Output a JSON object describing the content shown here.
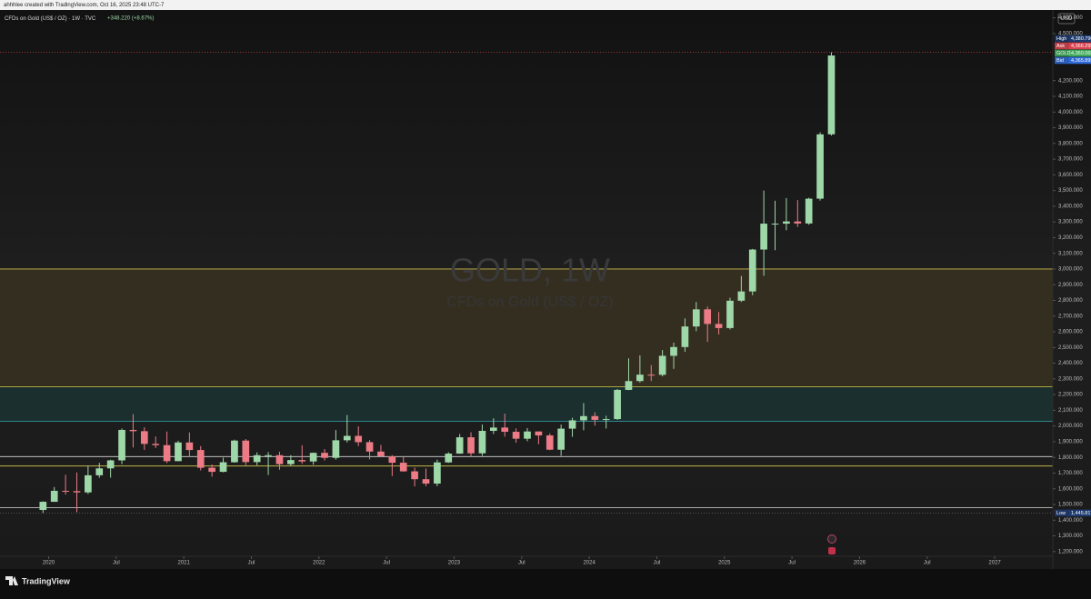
{
  "header": "ahhhlee created with TradingView.com, Oct 16, 2025 23:48 UTC-7",
  "legend": {
    "symbol": "CFDs on Gold (US$ / OZ) · 1W · TVC",
    "change": "+348.220 (+8.67%)"
  },
  "watermark": {
    "title": "GOLD, 1W",
    "subtitle": "CFDs on Gold (US$ / OZ)"
  },
  "currency": "USD",
  "brand": "TradingView",
  "chart_data": {
    "type": "candlestick",
    "up_color": "#9fd8a8",
    "down_color": "#ec7b86",
    "x": [
      "2019-12",
      "2020-01",
      "2020-02",
      "2020-03",
      "2020-04",
      "2020-05",
      "2020-06",
      "2020-07",
      "2020-08",
      "2020-09",
      "2020-10",
      "2020-11",
      "2020-12",
      "2021-01",
      "2021-02",
      "2021-03",
      "2021-04",
      "2021-05",
      "2021-06",
      "2021-07",
      "2021-08",
      "2021-09",
      "2021-10",
      "2021-11",
      "2021-12",
      "2022-01",
      "2022-02",
      "2022-03",
      "2022-04",
      "2022-05",
      "2022-06",
      "2022-07",
      "2022-08",
      "2022-09",
      "2022-10",
      "2022-11",
      "2022-12",
      "2023-01",
      "2023-02",
      "2023-03",
      "2023-04",
      "2023-05",
      "2023-06",
      "2023-07",
      "2023-08",
      "2023-09",
      "2023-10",
      "2023-11",
      "2023-12",
      "2024-01",
      "2024-02",
      "2024-03",
      "2024-04",
      "2024-05",
      "2024-06",
      "2024-07",
      "2024-08",
      "2024-09",
      "2024-10",
      "2024-11",
      "2024-12",
      "2025-01",
      "2025-02",
      "2025-03",
      "2025-04",
      "2025-05",
      "2025-06",
      "2025-07",
      "2025-08",
      "2025-09",
      "2025-10"
    ],
    "open": [
      1465,
      1517,
      1587,
      1585,
      1577,
      1686,
      1730,
      1781,
      1975,
      1967,
      1886,
      1878,
      1776,
      1895,
      1847,
      1734,
      1708,
      1769,
      1907,
      1770,
      1814,
      1814,
      1757,
      1783,
      1774,
      1829,
      1797,
      1909,
      1937,
      1897,
      1837,
      1807,
      1766,
      1711,
      1661,
      1633,
      1768,
      1824,
      1928,
      1826,
      1969,
      1990,
      1963,
      1919,
      1965,
      1940,
      1849,
      1983,
      2036,
      2063,
      2039,
      2044,
      2230,
      2286,
      2327,
      2326,
      2447,
      2503,
      2634,
      2743,
      2650,
      2624,
      2798,
      2857,
      3124,
      3289,
      3289,
      3303,
      3290,
      3448,
      3858
    ],
    "high": [
      1520,
      1611,
      1689,
      1704,
      1747,
      1765,
      1785,
      1984,
      2075,
      1992,
      1933,
      1965,
      1906,
      1959,
      1872,
      1755,
      1798,
      1913,
      1917,
      1832,
      1834,
      1836,
      1814,
      1877,
      1831,
      1853,
      1974,
      2070,
      1998,
      1910,
      1879,
      1814,
      1808,
      1735,
      1729,
      1786,
      1833,
      1949,
      1960,
      2009,
      2049,
      2079,
      1985,
      1987,
      1966,
      1953,
      2009,
      2052,
      2146,
      2088,
      2065,
      2236,
      2431,
      2450,
      2388,
      2484,
      2531,
      2685,
      2790,
      2761,
      2726,
      2817,
      2956,
      3128,
      3500,
      3435,
      3452,
      3439,
      3454,
      3871,
      4380.79
    ],
    "low": [
      1445.817,
      1517,
      1563,
      1451,
      1567,
      1670,
      1671,
      1757,
      1863,
      1848,
      1860,
      1764,
      1775,
      1802,
      1717,
      1677,
      1705,
      1766,
      1750,
      1750,
      1688,
      1721,
      1746,
      1758,
      1753,
      1780,
      1786,
      1895,
      1872,
      1787,
      1805,
      1681,
      1709,
      1615,
      1617,
      1616,
      1765,
      1823,
      1805,
      1810,
      1949,
      1932,
      1893,
      1903,
      1884,
      1846,
      1810,
      1931,
      1973,
      2002,
      1984,
      2039,
      2228,
      2277,
      2286,
      2316,
      2364,
      2472,
      2604,
      2536,
      2583,
      2615,
      2790,
      2833,
      2957,
      3120,
      3247,
      3268,
      3282,
      3436,
      3850
    ],
    "close": [
      1517,
      1587,
      1585,
      1577,
      1686,
      1730,
      1781,
      1975,
      1967,
      1886,
      1878,
      1776,
      1895,
      1847,
      1734,
      1708,
      1769,
      1907,
      1770,
      1814,
      1814,
      1757,
      1783,
      1774,
      1829,
      1797,
      1909,
      1937,
      1897,
      1837,
      1807,
      1766,
      1711,
      1661,
      1633,
      1768,
      1824,
      1928,
      1826,
      1969,
      1990,
      1963,
      1919,
      1965,
      1940,
      1849,
      1983,
      2036,
      2063,
      2039,
      2044,
      2230,
      2286,
      2327,
      2326,
      2447,
      2503,
      2634,
      2743,
      2650,
      2624,
      2798,
      2857,
      3124,
      3289,
      3289,
      3303,
      3290,
      3448,
      3858,
      4360.065
    ],
    "xlim": [
      2019.64,
      2027.43
    ],
    "xticks": [
      {
        "value": 2020,
        "label": "2020"
      },
      {
        "value": 2020.5,
        "label": "Jul"
      },
      {
        "value": 2021,
        "label": "2021"
      },
      {
        "value": 2021.5,
        "label": "Jul"
      },
      {
        "value": 2022,
        "label": "2022"
      },
      {
        "value": 2022.5,
        "label": "Jul"
      },
      {
        "value": 2023,
        "label": "2023"
      },
      {
        "value": 2023.5,
        "label": "Jul"
      },
      {
        "value": 2024,
        "label": "2024"
      },
      {
        "value": 2024.5,
        "label": "Jul"
      },
      {
        "value": 2025,
        "label": "2025"
      },
      {
        "value": 2025.5,
        "label": "Jul"
      },
      {
        "value": 2026,
        "label": "2026"
      },
      {
        "value": 2026.5,
        "label": "Jul"
      },
      {
        "value": 2027,
        "label": "2027"
      }
    ],
    "ylim": [
      1170,
      4650
    ],
    "yticks": [
      {
        "value": 4600,
        "label": "4,600.000"
      },
      {
        "value": 4500,
        "label": "4,500.000"
      },
      {
        "value": 4200,
        "label": "4,200.000"
      },
      {
        "value": 4100,
        "label": "4,100.000"
      },
      {
        "value": 4000,
        "label": "4,000.000"
      },
      {
        "value": 3900,
        "label": "3,900.000"
      },
      {
        "value": 3800,
        "label": "3,800.000"
      },
      {
        "value": 3700,
        "label": "3,700.000"
      },
      {
        "value": 3600,
        "label": "3,600.000"
      },
      {
        "value": 3500,
        "label": "3,500.000"
      },
      {
        "value": 3400,
        "label": "3,400.000"
      },
      {
        "value": 3300,
        "label": "3,300.000"
      },
      {
        "value": 3200,
        "label": "3,200.000"
      },
      {
        "value": 3100,
        "label": "3,100.000"
      },
      {
        "value": 3000,
        "label": "3,000.000"
      },
      {
        "value": 2900,
        "label": "2,900.000"
      },
      {
        "value": 2800,
        "label": "2,800.000"
      },
      {
        "value": 2700,
        "label": "2,700.000"
      },
      {
        "value": 2600,
        "label": "2,600.000"
      },
      {
        "value": 2500,
        "label": "2,500.000"
      },
      {
        "value": 2400,
        "label": "2,400.000"
      },
      {
        "value": 2300,
        "label": "2,300.000"
      },
      {
        "value": 2200,
        "label": "2,200.000"
      },
      {
        "value": 2100,
        "label": "2,100.000"
      },
      {
        "value": 2000,
        "label": "2,000.000"
      },
      {
        "value": 1900,
        "label": "1,900.000"
      },
      {
        "value": 1800,
        "label": "1,800.000"
      },
      {
        "value": 1700,
        "label": "1,700.000"
      },
      {
        "value": 1600,
        "label": "1,600.000"
      },
      {
        "value": 1500,
        "label": "1,500.000"
      },
      {
        "value": 1400,
        "label": "1,400.000"
      },
      {
        "value": 1300,
        "label": "1,300.000"
      },
      {
        "value": 1200,
        "label": "1,200.000"
      }
    ],
    "zones": [
      {
        "from": 2250,
        "to": 3000,
        "color": "#3a3222"
      },
      {
        "from": 2030,
        "to": 2250,
        "color": "#1c3434"
      }
    ],
    "levels": [
      {
        "value": 3000,
        "color": "#c9b84a"
      },
      {
        "value": 2250,
        "color": "#d8cc4a"
      },
      {
        "value": 2030,
        "color": "#3aa6b0"
      },
      {
        "value": 1805,
        "color": "#d8d8d8"
      },
      {
        "value": 1745,
        "color": "#d8cc4a"
      },
      {
        "value": 1480,
        "color": "#d8d8d8"
      }
    ],
    "price_labels": [
      {
        "name": "High",
        "value": 4380.79,
        "value_label": "4,380.790",
        "color": "#1e3a6e"
      },
      {
        "name": "Ask",
        "value": 4366.295,
        "value_label": "4,366.295",
        "color": "#d9434f"
      },
      {
        "name": "GOLD",
        "value": 4360.065,
        "value_label": "4,360.065",
        "color": "#3faa5a"
      },
      {
        "name": "Bid",
        "value": 4365.895,
        "value_label": "4,365.895",
        "color": "#2f6ad9"
      }
    ],
    "low_label": {
      "name": "Low",
      "value": 1445.817,
      "value_label": "1,445.817",
      "color": "#1e3a6e"
    }
  }
}
